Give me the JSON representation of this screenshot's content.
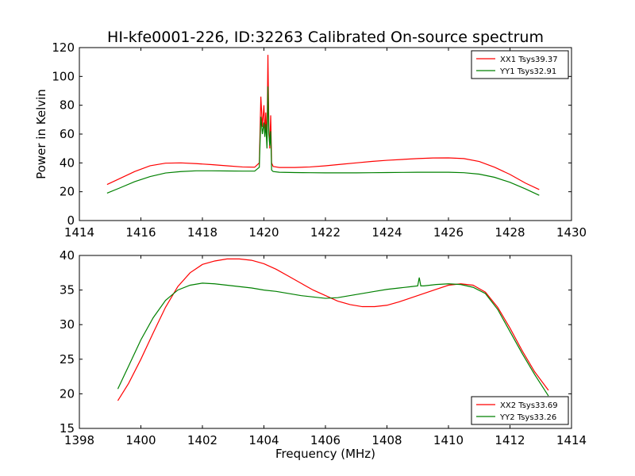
{
  "title": "HI-kfe0001-226, ID:32263 Calibrated On-source spectrum",
  "chart_data": [
    {
      "type": "line",
      "title": "HI-kfe0001-226, ID:32263 Calibrated On-source spectrum",
      "xlabel": "",
      "ylabel": "Power in Kelvin",
      "xlim": [
        1414,
        1430
      ],
      "ylim": [
        0,
        120
      ],
      "xticks": [
        1414,
        1416,
        1418,
        1420,
        1422,
        1424,
        1426,
        1428,
        1430
      ],
      "yticks": [
        0,
        20,
        40,
        60,
        80,
        100,
        120
      ],
      "grid": false,
      "legend_position": "top-right",
      "series": [
        {
          "name": "XX1 Tsys39.37",
          "color": "#ff0000",
          "x": [
            1414.9,
            1415.3,
            1415.8,
            1416.3,
            1416.8,
            1417.3,
            1417.8,
            1418.3,
            1418.8,
            1419.3,
            1419.7,
            1419.85,
            1419.9,
            1419.95,
            1420.0,
            1420.03,
            1420.06,
            1420.1,
            1420.13,
            1420.16,
            1420.19,
            1420.22,
            1420.25,
            1420.3,
            1420.5,
            1421.0,
            1421.5,
            1422.0,
            1422.5,
            1423.0,
            1423.5,
            1424.0,
            1424.5,
            1425.0,
            1425.5,
            1426.0,
            1426.5,
            1427.0,
            1427.5,
            1428.0,
            1428.5,
            1428.95
          ],
          "y": [
            25,
            29,
            34,
            38,
            39.8,
            40,
            39.5,
            38.8,
            38,
            37.2,
            37,
            40,
            86,
            65,
            80,
            60,
            75,
            55,
            115,
            65,
            50,
            73,
            40,
            37.5,
            36.8,
            36.8,
            37.2,
            38,
            39,
            40,
            41,
            41.8,
            42.4,
            43,
            43.4,
            43.5,
            43,
            41,
            37,
            32,
            26,
            21.5
          ]
        },
        {
          "name": "YY1 Tsys32.91",
          "color": "#008000",
          "x": [
            1414.9,
            1415.3,
            1415.8,
            1416.3,
            1416.8,
            1417.3,
            1417.8,
            1418.3,
            1418.8,
            1419.3,
            1419.7,
            1419.85,
            1419.9,
            1419.95,
            1420.0,
            1420.03,
            1420.06,
            1420.1,
            1420.13,
            1420.16,
            1420.19,
            1420.22,
            1420.25,
            1420.3,
            1420.5,
            1421.0,
            1421.5,
            1422.0,
            1422.5,
            1423.0,
            1423.5,
            1424.0,
            1424.5,
            1425.0,
            1425.5,
            1426.0,
            1426.5,
            1427.0,
            1427.5,
            1428.0,
            1428.5,
            1428.95
          ],
          "y": [
            19,
            22.5,
            27,
            30.5,
            33,
            34,
            34.5,
            34.5,
            34.4,
            34.3,
            34.3,
            37,
            72,
            60,
            68,
            58,
            67,
            50,
            93,
            60,
            52,
            62,
            35,
            34,
            33.5,
            33.3,
            33.2,
            33.1,
            33.1,
            33.1,
            33.2,
            33.3,
            33.4,
            33.5,
            33.5,
            33.5,
            33.2,
            32.2,
            30,
            26.5,
            22,
            17.5
          ]
        }
      ]
    },
    {
      "type": "line",
      "title": "",
      "xlabel": "Frequency (MHz)",
      "ylabel": "",
      "xlim": [
        1398,
        1414
      ],
      "ylim": [
        15,
        40
      ],
      "xticks": [
        1398,
        1400,
        1402,
        1404,
        1406,
        1408,
        1410,
        1412,
        1414
      ],
      "yticks": [
        15,
        20,
        25,
        30,
        35,
        40
      ],
      "grid": false,
      "legend_position": "bottom-right",
      "series": [
        {
          "name": "XX2 Tsys33.69",
          "color": "#ff0000",
          "x": [
            1399.25,
            1399.6,
            1400.0,
            1400.4,
            1400.8,
            1401.2,
            1401.6,
            1402.0,
            1402.4,
            1402.8,
            1403.2,
            1403.6,
            1404.0,
            1404.4,
            1404.8,
            1405.2,
            1405.6,
            1406.0,
            1406.4,
            1406.8,
            1407.2,
            1407.6,
            1408.0,
            1408.4,
            1408.8,
            1409.2,
            1409.6,
            1410.0,
            1410.4,
            1410.8,
            1411.2,
            1411.6,
            1412.0,
            1412.4,
            1412.8,
            1413.25
          ],
          "y": [
            19,
            21.5,
            25,
            28.8,
            32.5,
            35.5,
            37.5,
            38.7,
            39.2,
            39.5,
            39.5,
            39.3,
            38.8,
            38,
            37,
            36,
            35,
            34.2,
            33.4,
            32.9,
            32.6,
            32.6,
            32.8,
            33.3,
            33.9,
            34.5,
            35.1,
            35.7,
            35.9,
            35.7,
            34.7,
            32.5,
            29.5,
            26.2,
            23.2,
            20.5
          ]
        },
        {
          "name": "YY2 Tsys33.26",
          "color": "#008000",
          "x": [
            1399.25,
            1399.6,
            1400.0,
            1400.4,
            1400.8,
            1401.2,
            1401.6,
            1402.0,
            1402.4,
            1402.8,
            1403.2,
            1403.6,
            1404.0,
            1404.4,
            1404.8,
            1405.2,
            1405.6,
            1406.0,
            1406.4,
            1406.8,
            1407.2,
            1407.6,
            1408.0,
            1408.4,
            1408.8,
            1409.0,
            1409.05,
            1409.1,
            1409.2,
            1409.6,
            1410.0,
            1410.4,
            1410.8,
            1411.2,
            1411.6,
            1412.0,
            1412.4,
            1412.8,
            1413.25
          ],
          "y": [
            20.7,
            24,
            27.8,
            31,
            33.5,
            35,
            35.7,
            36,
            35.9,
            35.7,
            35.5,
            35.3,
            35,
            34.8,
            34.5,
            34.2,
            34,
            33.8,
            33.9,
            34.2,
            34.5,
            34.8,
            35.1,
            35.3,
            35.5,
            35.6,
            36.8,
            35.6,
            35.6,
            35.8,
            35.9,
            35.8,
            35.4,
            34.5,
            32.2,
            29,
            25.8,
            22.8,
            19.7
          ]
        }
      ]
    }
  ]
}
